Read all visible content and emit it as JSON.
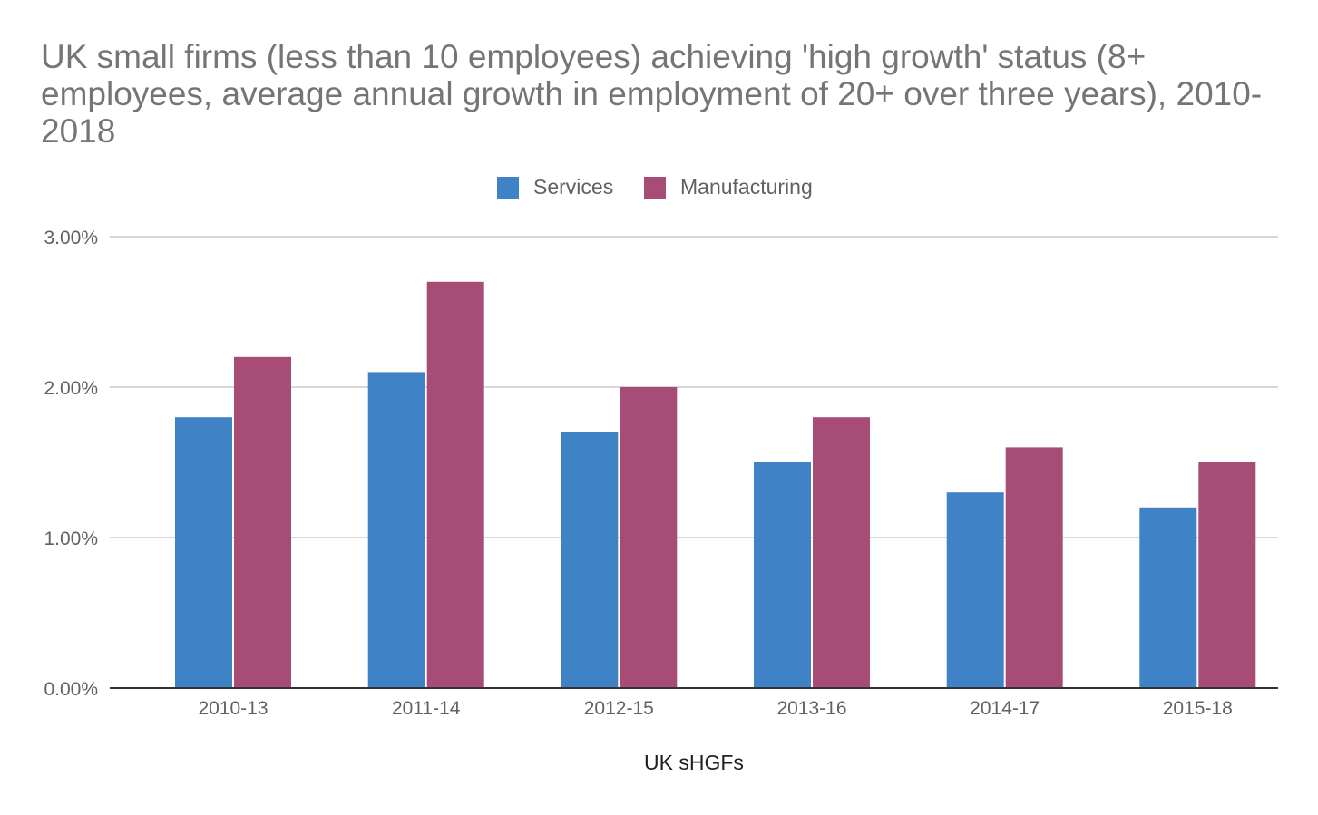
{
  "chart_data": {
    "type": "bar",
    "title": "UK small firms (less than 10 employees) achieving 'high growth' status (8+ employees, average annual growth in employment of 20+ over three years), 2010-2018",
    "xlabel": "UK sHGFs",
    "ylabel": "",
    "categories": [
      "2010-13",
      "2011-14",
      "2012-15",
      "2013-16",
      "2014-17",
      "2015-18"
    ],
    "series": [
      {
        "name": "Services",
        "color": "#3f83c6",
        "values": [
          1.8,
          2.1,
          1.7,
          1.5,
          1.3,
          1.2
        ]
      },
      {
        "name": "Manufacturing",
        "color": "#a64c76",
        "values": [
          2.2,
          2.7,
          2.0,
          1.8,
          1.6,
          1.5
        ]
      }
    ],
    "ylim": [
      0,
      3
    ],
    "yticks": [
      0,
      1,
      2,
      3
    ],
    "ytick_labels": [
      "0.00%",
      "1.00%",
      "2.00%",
      "3.00%"
    ],
    "y_unit": "percent",
    "grid": true,
    "legend_position": "top-center"
  }
}
